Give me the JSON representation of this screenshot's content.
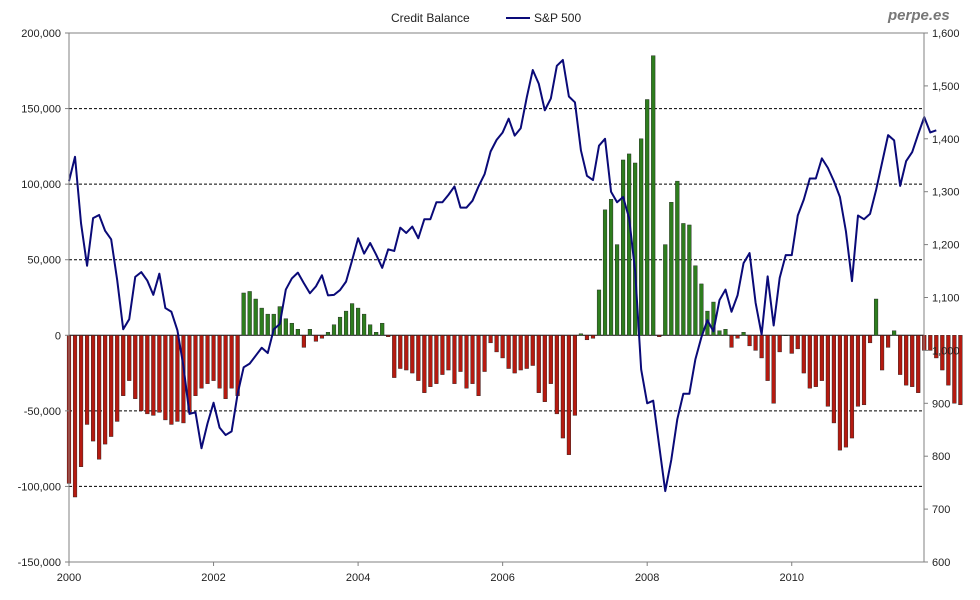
{
  "watermark": "perpe.es",
  "chart_data": {
    "type": "bar+line",
    "title": "",
    "legend": [
      {
        "name": "Credit Balance",
        "kind": "bar"
      },
      {
        "name": "S&P 500",
        "kind": "line"
      }
    ],
    "legend_position": "top-center",
    "x_axis": {
      "min": 2000.0,
      "max": 2011.83,
      "ticks": [
        2000,
        2002,
        2004,
        2006,
        2008,
        2010
      ]
    },
    "y_left": {
      "label": "Credit Balance",
      "min": -150000,
      "max": 200000,
      "step": 50000,
      "tick_labels": [
        "-150,000",
        "-100,000",
        "-50,000",
        "0",
        "50,000",
        "100,000",
        "150,000",
        "200,000"
      ]
    },
    "y_right": {
      "label": "S&P 500",
      "min": 600,
      "max": 1600,
      "step": 100,
      "tick_labels": [
        "600",
        "700",
        "800",
        "900",
        "1,000",
        "1,100",
        "1,200",
        "1,300",
        "1,400",
        "1,500",
        "1,600"
      ]
    },
    "gridlines": "dashed at left-axis major ticks",
    "colors": {
      "positive": "#2e7d1e",
      "negative": "#b51a10",
      "line": "#0a0a78",
      "grid": "#000000"
    },
    "series": [
      {
        "name": "Credit Balance",
        "axis": "left",
        "start": 2000.0,
        "step_months": 1,
        "values": [
          -98000,
          -107000,
          -87000,
          -59000,
          -70000,
          -82000,
          -72000,
          -67000,
          -57000,
          -40000,
          -30000,
          -42000,
          -50000,
          -52000,
          -53000,
          -51000,
          -56000,
          -59000,
          -57000,
          -58000,
          -51000,
          -40000,
          -35000,
          -32000,
          -30000,
          -35000,
          -42000,
          -35000,
          -40000,
          28000,
          29000,
          24000,
          18000,
          14000,
          14000,
          19000,
          11000,
          8000,
          4000,
          -8000,
          4000,
          -4000,
          -2000,
          2000,
          7000,
          12000,
          16000,
          21000,
          18000,
          14000,
          7000,
          2000,
          8000,
          -1000,
          -28000,
          -22000,
          -23000,
          -25000,
          -30000,
          -38000,
          -34000,
          -32000,
          -26000,
          -23000,
          -32000,
          -24000,
          -35000,
          -32000,
          -40000,
          -24000,
          -5000,
          -11000,
          -15000,
          -22000,
          -25000,
          -23000,
          -22000,
          -20000,
          -38000,
          -44000,
          -32000,
          -52000,
          -68000,
          -79000,
          -53000,
          1000,
          -3000,
          -2000,
          30000,
          83000,
          90000,
          60000,
          116000,
          120000,
          114000,
          130000,
          156000,
          185000,
          -1000,
          60000,
          88000,
          102000,
          74000,
          73000,
          46000,
          34000,
          16000,
          22000,
          3000,
          4000,
          -8000,
          -2000,
          2000,
          -7000,
          -10000,
          -15000,
          -30000,
          -45000,
          -11000,
          0,
          -12000,
          -9000,
          -25000,
          -35000,
          -34000,
          -30000,
          -47000,
          -58000,
          -76000,
          -74000,
          -68000,
          -47000,
          -46000,
          -5000,
          24000,
          -23000,
          -8000,
          3000,
          -26000,
          -33000,
          -34000,
          -38000,
          -10000,
          -10000,
          -15000,
          -23000,
          -33000,
          -45000,
          -46000
        ]
      },
      {
        "name": "S&P 500",
        "axis": "right",
        "start": 2000.0,
        "step_months": 1,
        "values": [
          1320,
          1366,
          1240,
          1160,
          1250,
          1256,
          1226,
          1210,
          1133,
          1040,
          1059,
          1139,
          1148,
          1132,
          1105,
          1145,
          1080,
          1073,
          1038,
          970,
          880,
          883,
          815,
          862,
          901,
          854,
          840,
          847,
          918,
          968,
          975,
          990,
          1005,
          995,
          1040,
          1050,
          1115,
          1136,
          1147,
          1127,
          1108,
          1121,
          1142,
          1104,
          1105,
          1114,
          1130,
          1170,
          1212,
          1183,
          1203,
          1181,
          1156,
          1191,
          1188,
          1232,
          1222,
          1234,
          1212,
          1248,
          1248,
          1280,
          1280,
          1294,
          1310,
          1270,
          1270,
          1283,
          1310,
          1333,
          1376,
          1398,
          1412,
          1438,
          1406,
          1420,
          1478,
          1530,
          1504,
          1454,
          1476,
          1538,
          1549,
          1480,
          1469,
          1378,
          1330,
          1322,
          1387,
          1400,
          1300,
          1280,
          1290,
          1250,
          1150,
          964,
          900,
          905,
          819,
          734,
          793,
          870,
          918,
          918,
          983,
          1025,
          1057,
          1036,
          1095,
          1115,
          1073,
          1104,
          1165,
          1184,
          1090,
          1030,
          1140,
          1047,
          1137,
          1180,
          1180,
          1255,
          1285,
          1325,
          1325,
          1363,
          1345,
          1320,
          1290,
          1225,
          1131,
          1255,
          1248,
          1258,
          1303,
          1355,
          1407,
          1397,
          1311,
          1358,
          1375,
          1409,
          1441,
          1412,
          1416
        ]
      }
    ]
  }
}
